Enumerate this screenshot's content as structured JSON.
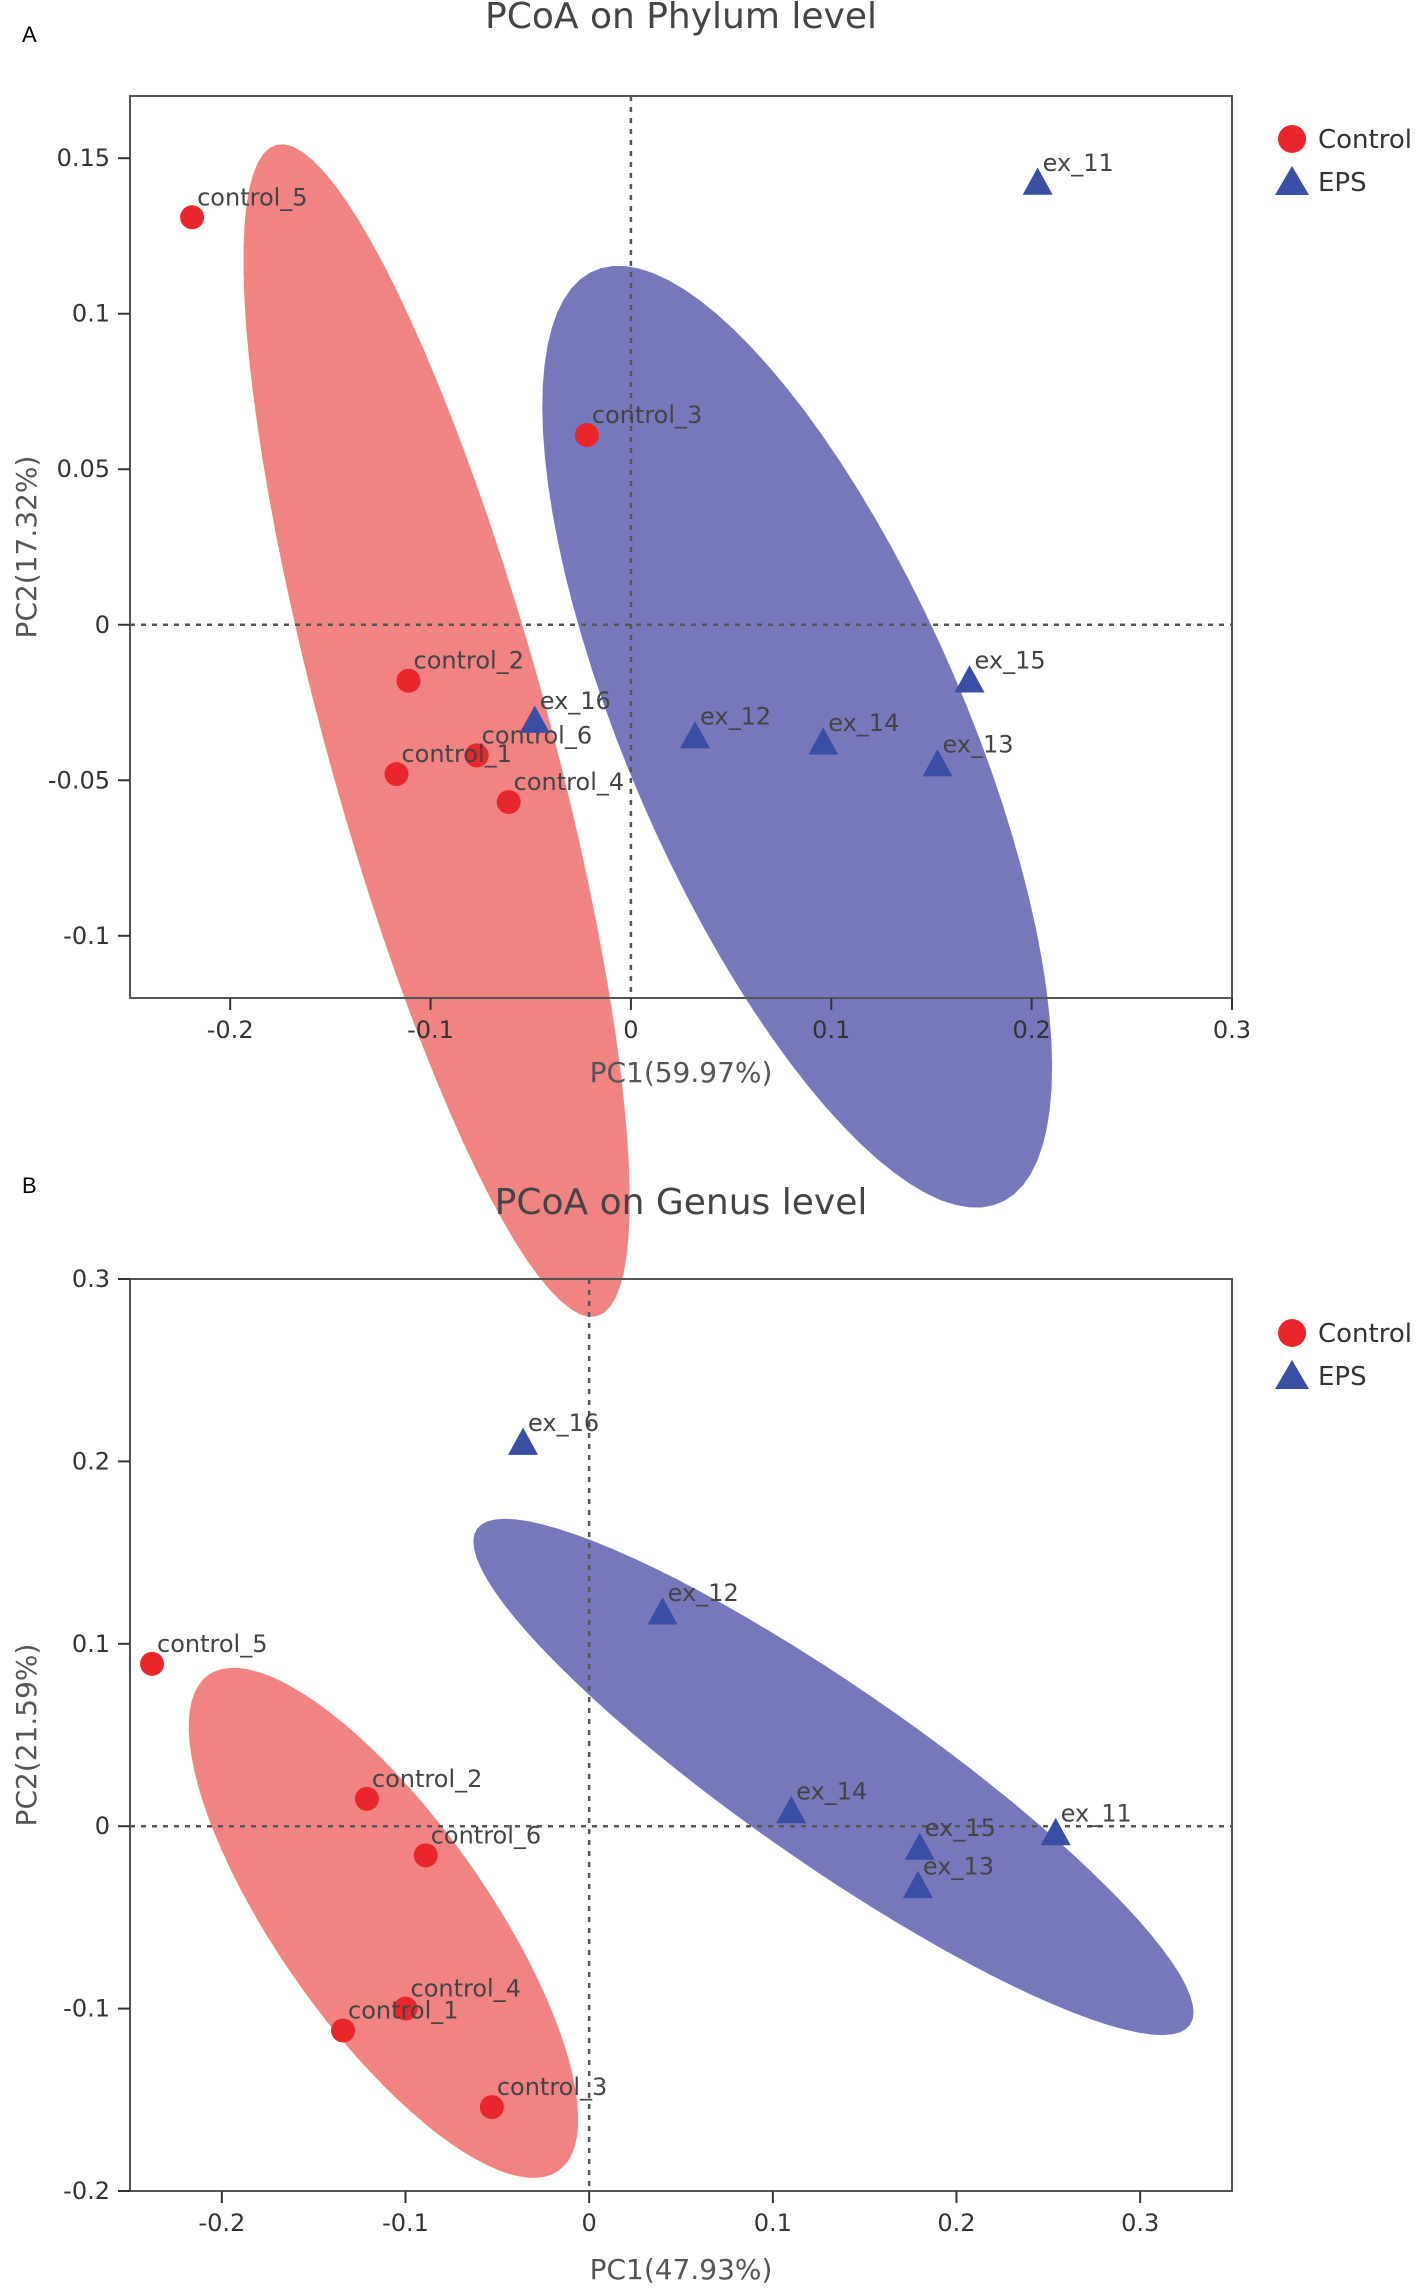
{
  "chart_data": [
    {
      "type": "scatter",
      "panel": "A",
      "title": "PCoA on Phylum level",
      "xlabel": "PC1(59.97%)",
      "ylabel": "PC2(17.32%)",
      "xlim": [
        -0.25,
        0.3
      ],
      "ylim": [
        -0.12,
        0.17
      ],
      "xticks": [
        -0.2,
        -0.1,
        0,
        0.1,
        0.2,
        0.3
      ],
      "xtick_labels": [
        "-0.2",
        "-0.1",
        "0",
        "0.1",
        "0.2",
        "0.3"
      ],
      "yticks": [
        -0.1,
        -0.05,
        0,
        0.05,
        0.1,
        0.15
      ],
      "ytick_labels": [
        "-0.1",
        "-0.05",
        "0",
        "0.05",
        "0.1",
        "0.15"
      ],
      "reference_lines": {
        "x": 0,
        "y": 0
      },
      "legend": {
        "position": "top-right outside",
        "entries": [
          "Control",
          "EPS"
        ]
      },
      "series": [
        {
          "name": "Control",
          "marker": "circle",
          "color": "#e8262b",
          "ellipse_color": "#f07878",
          "ellipse": {
            "cx": -0.097,
            "cy": -0.034,
            "rx": 0.205,
            "ry": 0.053,
            "angle": -66
          },
          "points": [
            {
              "label": "control_5",
              "x": -0.219,
              "y": 0.131
            },
            {
              "label": "control_3",
              "x": -0.022,
              "y": 0.061
            },
            {
              "label": "control_2",
              "x": -0.111,
              "y": -0.018
            },
            {
              "label": "control_6",
              "x": -0.077,
              "y": -0.042
            },
            {
              "label": "control_1",
              "x": -0.117,
              "y": -0.048
            },
            {
              "label": "control_4",
              "x": -0.061,
              "y": -0.057
            }
          ]
        },
        {
          "name": "EPS",
          "marker": "triangle",
          "color": "#3a4ea6",
          "ellipse_color": "#6b6db5",
          "ellipse": {
            "cx": 0.083,
            "cy": -0.036,
            "rx": 0.183,
            "ry": 0.075,
            "angle": -52
          },
          "points": [
            {
              "label": "ex_11",
              "x": 0.203,
              "y": 0.142
            },
            {
              "label": "ex_16",
              "x": -0.048,
              "y": -0.031
            },
            {
              "label": "ex_12",
              "x": 0.032,
              "y": -0.036
            },
            {
              "label": "ex_14",
              "x": 0.096,
              "y": -0.038
            },
            {
              "label": "ex_15",
              "x": 0.169,
              "y": -0.018
            },
            {
              "label": "ex_13",
              "x": 0.153,
              "y": -0.045
            }
          ]
        }
      ]
    },
    {
      "type": "scatter",
      "panel": "B",
      "title": "PCoA on Genus level",
      "xlabel": "PC1(47.93%)",
      "ylabel": "PC2(21.59%)",
      "xlim": [
        -0.25,
        0.35
      ],
      "ylim": [
        -0.2,
        0.3
      ],
      "xticks": [
        -0.2,
        -0.1,
        0,
        0.1,
        0.2,
        0.3
      ],
      "xtick_labels": [
        "-0.2",
        "-0.1",
        "0",
        "0.1",
        "0.2",
        "0.3"
      ],
      "yticks": [
        -0.2,
        -0.1,
        0,
        0.1,
        0.2,
        0.3
      ],
      "ytick_labels": [
        "-0.2",
        "-0.1",
        "0",
        "0.1",
        "0.2",
        "0.3"
      ],
      "reference_lines": {
        "x": 0,
        "y": 0
      },
      "legend": {
        "position": "top-right outside",
        "entries": [
          "Control",
          "EPS"
        ]
      },
      "series": [
        {
          "name": "Control",
          "marker": "circle",
          "color": "#e8262b",
          "ellipse_color": "#f07878",
          "ellipse": {
            "cx": -0.112,
            "cy": -0.053,
            "rx": 0.166,
            "ry": 0.057,
            "angle": -55
          },
          "points": [
            {
              "label": "control_5",
              "x": -0.238,
              "y": 0.089
            },
            {
              "label": "control_2",
              "x": -0.121,
              "y": 0.015
            },
            {
              "label": "control_6",
              "x": -0.089,
              "y": -0.016
            },
            {
              "label": "control_4",
              "x": -0.1,
              "y": -0.1
            },
            {
              "label": "control_1",
              "x": -0.134,
              "y": -0.112
            },
            {
              "label": "control_3",
              "x": -0.053,
              "y": -0.154
            }
          ]
        },
        {
          "name": "EPS",
          "marker": "triangle",
          "color": "#3a4ea6",
          "ellipse_color": "#6b6db5",
          "ellipse": {
            "cx": 0.133,
            "cy": 0.027,
            "rx": 0.237,
            "ry": 0.048,
            "angle": -35
          },
          "points": [
            {
              "label": "ex_16",
              "x": -0.036,
              "y": 0.21
            },
            {
              "label": "ex_12",
              "x": 0.04,
              "y": 0.117
            },
            {
              "label": "ex_14",
              "x": 0.11,
              "y": 0.008
            },
            {
              "label": "ex_11",
              "x": 0.254,
              "y": -0.004
            },
            {
              "label": "ex_15",
              "x": 0.18,
              "y": -0.012
            },
            {
              "label": "ex_13",
              "x": 0.179,
              "y": -0.033
            }
          ]
        }
      ]
    }
  ]
}
